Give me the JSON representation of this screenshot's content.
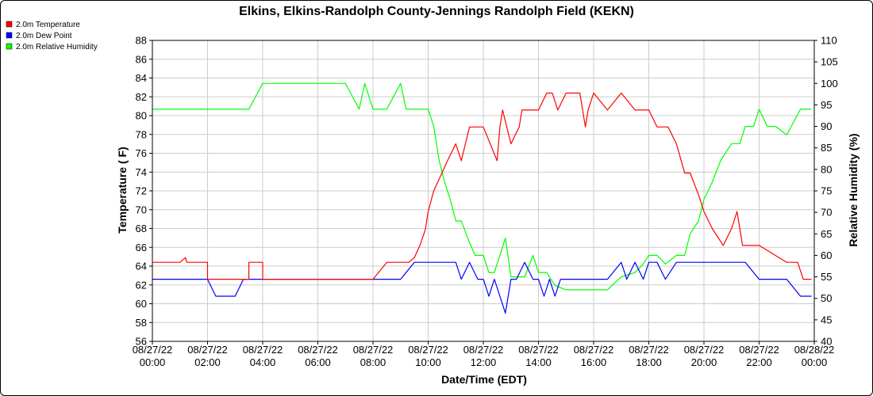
{
  "chart_data": {
    "type": "line",
    "title": "Elkins, Elkins-Randolph County-Jennings Randolph Field (KEKN)",
    "xlabel": "Date/Time (EDT)",
    "ylabel_left": "Temperature ( F)",
    "ylabel_right": "Relative Humidity (%)",
    "ylim_left": [
      56,
      88
    ],
    "ylim_right": [
      40,
      110
    ],
    "xlim": [
      0,
      24
    ],
    "grid": true,
    "legend_position": "top-left",
    "x_ticks": [
      {
        "date": "08/27/22",
        "time": "00:00"
      },
      {
        "date": "08/27/22",
        "time": "02:00"
      },
      {
        "date": "08/27/22",
        "time": "04:00"
      },
      {
        "date": "08/27/22",
        "time": "06:00"
      },
      {
        "date": "08/27/22",
        "time": "08:00"
      },
      {
        "date": "08/27/22",
        "time": "10:00"
      },
      {
        "date": "08/27/22",
        "time": "12:00"
      },
      {
        "date": "08/27/22",
        "time": "14:00"
      },
      {
        "date": "08/27/22",
        "time": "16:00"
      },
      {
        "date": "08/27/22",
        "time": "18:00"
      },
      {
        "date": "08/27/22",
        "time": "20:00"
      },
      {
        "date": "08/27/22",
        "time": "22:00"
      },
      {
        "date": "08/28/22",
        "time": "00:00"
      }
    ],
    "y_ticks_left": [
      "56",
      "58",
      "60",
      "62",
      "64",
      "66",
      "68",
      "70",
      "72",
      "74",
      "76",
      "78",
      "80",
      "82",
      "84",
      "86",
      "88"
    ],
    "y_ticks_right": [
      "40",
      "45",
      "50",
      "55",
      "60",
      "65",
      "70",
      "75",
      "80",
      "85",
      "90",
      "95",
      "100",
      "105",
      "110"
    ],
    "series": [
      {
        "name": "2.0m Temperature",
        "color": "#ff0000",
        "axis": "left",
        "x": [
          0,
          1,
          1.2,
          1.25,
          1.3,
          2,
          2,
          2.5,
          2.5,
          3.5,
          3.5,
          4,
          4,
          6,
          8,
          8.5,
          9,
          9.3,
          9.5,
          9.7,
          9.9,
          10,
          10.2,
          10.5,
          10.7,
          11,
          11.2,
          11.5,
          11.7,
          12,
          12.5,
          12.6,
          12.7,
          13,
          13.3,
          13.4,
          13.5,
          14,
          14.3,
          14.5,
          14.7,
          15,
          15.5,
          15.7,
          15.8,
          16,
          16.5,
          17,
          17.5,
          18,
          18.3,
          18.7,
          19,
          19.3,
          19.5,
          19.8,
          20,
          20.3,
          20.7,
          21,
          21.2,
          21.4,
          21.6,
          21.8,
          22,
          23,
          23.4,
          23.6,
          23.9
        ],
        "y": [
          64.4,
          64.4,
          64.9,
          64.4,
          64.4,
          64.4,
          62.6,
          62.6,
          62.6,
          62.6,
          64.4,
          64.4,
          62.6,
          62.6,
          62.6,
          64.4,
          64.4,
          64.4,
          64.9,
          66.2,
          67.9,
          69.8,
          72,
          73.9,
          75.2,
          77,
          75.2,
          78.8,
          78.8,
          78.8,
          75.2,
          78.8,
          80.6,
          77,
          78.8,
          80.6,
          80.6,
          80.6,
          82.4,
          82.4,
          80.6,
          82.4,
          82.4,
          78.8,
          80.6,
          82.4,
          80.6,
          82.4,
          80.6,
          80.6,
          78.8,
          78.8,
          77,
          73.9,
          73.9,
          71.6,
          69.8,
          68,
          66.2,
          68,
          69.8,
          66.2,
          66.2,
          66.2,
          66.2,
          64.4,
          64.4,
          62.6,
          62.6
        ]
      },
      {
        "name": "2.0m Dew Point",
        "color": "#0000ff",
        "axis": "left",
        "x": [
          0,
          1,
          1.5,
          2,
          2.3,
          2.5,
          3,
          3.3,
          3.5,
          4,
          5,
          6,
          7,
          8,
          8.5,
          9,
          9.5,
          10,
          10.5,
          11,
          11.2,
          11.5,
          11.8,
          12,
          12.2,
          12.4,
          12.6,
          12.8,
          13,
          13.2,
          13.5,
          13.8,
          14,
          14.2,
          14.4,
          14.6,
          14.8,
          15,
          15.5,
          16,
          16.5,
          17,
          17.2,
          17.5,
          17.8,
          18,
          18.3,
          18.6,
          19,
          19.5,
          20,
          20.5,
          21,
          21.5,
          22,
          22.5,
          23,
          23.5,
          23.9
        ],
        "y": [
          62.6,
          62.6,
          62.6,
          62.6,
          60.8,
          60.8,
          60.8,
          62.6,
          62.6,
          62.6,
          62.6,
          62.6,
          62.6,
          62.6,
          62.6,
          62.6,
          64.4,
          64.4,
          64.4,
          64.4,
          62.6,
          64.4,
          62.6,
          62.6,
          60.8,
          62.6,
          60.8,
          59,
          62.6,
          62.6,
          64.4,
          62.6,
          62.6,
          60.8,
          62.6,
          60.8,
          62.6,
          62.6,
          62.6,
          62.6,
          62.6,
          64.4,
          62.6,
          64.4,
          62.6,
          64.4,
          64.4,
          62.6,
          64.4,
          64.4,
          64.4,
          64.4,
          64.4,
          64.4,
          62.6,
          62.6,
          62.6,
          60.8,
          60.8
        ]
      },
      {
        "name": "2.0m Relative Humidity",
        "color": "#00ff00",
        "axis": "right",
        "x": [
          0,
          1,
          1.5,
          1.9,
          2,
          2.4,
          2.5,
          3,
          3.3,
          3.5,
          4,
          5,
          6,
          7,
          7.5,
          7.7,
          8,
          8.5,
          9,
          9.2,
          9.4,
          9.6,
          9.8,
          10,
          10.2,
          10.4,
          10.6,
          10.8,
          11,
          11.2,
          11.5,
          11.7,
          12,
          12.2,
          12.4,
          12.6,
          12.8,
          13,
          13.2,
          13.5,
          13.8,
          14,
          14.3,
          14.6,
          15,
          15.5,
          16,
          16.5,
          17,
          17.5,
          17.8,
          18,
          18.3,
          18.6,
          19,
          19.3,
          19.5,
          19.8,
          20,
          20.3,
          20.6,
          21,
          21.3,
          21.5,
          21.8,
          22,
          22.3,
          22.6,
          23,
          23.5,
          23.9
        ],
        "y": [
          94,
          94,
          94,
          94,
          94,
          94,
          94,
          94,
          94,
          94,
          100,
          100,
          100,
          100,
          94,
          100,
          94,
          94,
          100,
          94,
          94,
          94,
          94,
          94,
          90,
          82,
          77,
          73,
          68,
          68,
          63,
          60,
          60,
          56,
          56,
          60,
          64,
          55,
          55,
          55,
          60,
          56,
          56,
          53,
          52,
          52,
          52,
          52,
          55,
          56,
          58,
          60,
          60,
          58,
          60,
          60,
          65,
          68,
          73,
          77,
          82,
          86,
          86,
          90,
          90,
          94,
          90,
          90,
          88,
          94,
          94
        ]
      }
    ]
  }
}
